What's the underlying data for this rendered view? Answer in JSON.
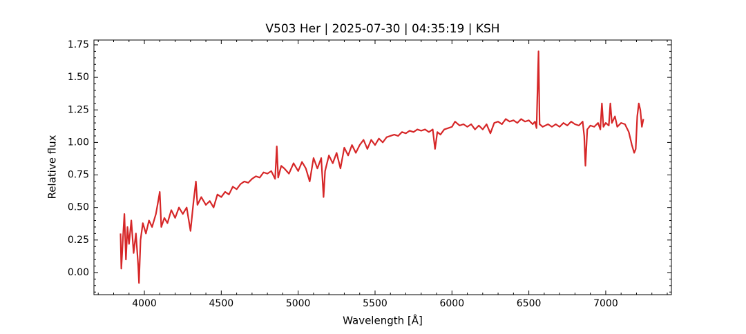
{
  "chart_data": {
    "type": "line",
    "title": "V503 Her | 2025-07-30 | 04:35:19 | KSH",
    "xlabel": "Wavelength [Å]",
    "ylabel": "Relative flux",
    "color": "#d62728",
    "xlim": [
      3672,
      7427
    ],
    "ylim": [
      -0.17,
      1.787
    ],
    "xticks": [
      4000,
      4500,
      5000,
      5500,
      6000,
      6500,
      7000
    ],
    "yticks": [
      {
        "value": 0,
        "label": "0.00"
      },
      {
        "value": 0.25,
        "label": "0.25"
      },
      {
        "value": 0.5,
        "label": "0.50"
      },
      {
        "value": 0.75,
        "label": "0.75"
      },
      {
        "value": 1,
        "label": "1.00"
      },
      {
        "value": 1.25,
        "label": "1.25"
      },
      {
        "value": 1.5,
        "label": "1.50"
      },
      {
        "value": 1.75,
        "label": "1.75"
      }
    ],
    "xminorticks": [
      3700,
      3800,
      3900,
      4100,
      4200,
      4300,
      4400,
      4600,
      4700,
      4800,
      4900,
      5100,
      5200,
      5300,
      5400,
      5600,
      5700,
      5800,
      5900,
      6100,
      6200,
      6300,
      6400,
      6600,
      6700,
      6800,
      6900,
      7100,
      7200,
      7300,
      7400
    ],
    "yminorticks": [
      -0.15,
      -0.1,
      -0.05,
      0.05,
      0.1,
      0.15,
      0.2,
      0.3,
      0.35,
      0.4,
      0.45,
      0.55,
      0.6,
      0.65,
      0.7,
      0.8,
      0.85,
      0.9,
      0.95,
      1.05,
      1.1,
      1.15,
      1.2,
      1.3,
      1.35,
      1.4,
      1.45,
      1.55,
      1.6,
      1.65,
      1.7
    ],
    "x": [
      3845,
      3850,
      3860,
      3870,
      3880,
      3890,
      3900,
      3915,
      3930,
      3945,
      3960,
      3965,
      3975,
      3990,
      4010,
      4030,
      4050,
      4075,
      4090,
      4100,
      4110,
      4130,
      4150,
      4175,
      4200,
      4225,
      4250,
      4275,
      4300,
      4320,
      4335,
      4345,
      4370,
      4400,
      4425,
      4450,
      4475,
      4500,
      4525,
      4550,
      4575,
      4600,
      4625,
      4650,
      4675,
      4700,
      4725,
      4750,
      4775,
      4800,
      4825,
      4850,
      4861,
      4870,
      4890,
      4910,
      4940,
      4970,
      5000,
      5025,
      5050,
      5075,
      5100,
      5125,
      5150,
      5165,
      5175,
      5200,
      5225,
      5250,
      5275,
      5300,
      5325,
      5350,
      5375,
      5400,
      5425,
      5450,
      5475,
      5500,
      5525,
      5550,
      5575,
      5600,
      5625,
      5650,
      5675,
      5700,
      5725,
      5750,
      5775,
      5800,
      5825,
      5850,
      5875,
      5890,
      5905,
      5925,
      5950,
      5975,
      6000,
      6020,
      6050,
      6075,
      6100,
      6125,
      6150,
      6175,
      6200,
      6225,
      6250,
      6275,
      6300,
      6325,
      6350,
      6375,
      6400,
      6425,
      6450,
      6475,
      6500,
      6525,
      6540,
      6550,
      6563,
      6570,
      6590,
      6625,
      6650,
      6675,
      6700,
      6725,
      6750,
      6775,
      6800,
      6825,
      6850,
      6860,
      6868,
      6880,
      6900,
      6925,
      6950,
      6965,
      6975,
      6985,
      7000,
      7020,
      7030,
      7040,
      7060,
      7075,
      7100,
      7125,
      7150,
      7170,
      7185,
      7195,
      7205,
      7215,
      7225,
      7235,
      7245
    ],
    "values": [
      0.3,
      0.03,
      0.25,
      0.45,
      0.1,
      0.35,
      0.22,
      0.4,
      0.15,
      0.3,
      0.05,
      -0.08,
      0.25,
      0.38,
      0.3,
      0.4,
      0.35,
      0.45,
      0.55,
      0.62,
      0.35,
      0.42,
      0.38,
      0.48,
      0.42,
      0.5,
      0.45,
      0.5,
      0.32,
      0.55,
      0.7,
      0.52,
      0.58,
      0.52,
      0.55,
      0.5,
      0.6,
      0.58,
      0.62,
      0.6,
      0.66,
      0.64,
      0.68,
      0.7,
      0.69,
      0.72,
      0.74,
      0.73,
      0.77,
      0.76,
      0.78,
      0.72,
      0.97,
      0.73,
      0.82,
      0.8,
      0.76,
      0.84,
      0.78,
      0.85,
      0.8,
      0.7,
      0.88,
      0.8,
      0.88,
      0.58,
      0.78,
      0.9,
      0.84,
      0.92,
      0.8,
      0.96,
      0.9,
      0.98,
      0.92,
      0.98,
      1.02,
      0.95,
      1.02,
      0.98,
      1.03,
      1.0,
      1.04,
      1.05,
      1.06,
      1.05,
      1.08,
      1.07,
      1.09,
      1.08,
      1.1,
      1.09,
      1.1,
      1.08,
      1.1,
      0.95,
      1.08,
      1.06,
      1.1,
      1.11,
      1.12,
      1.16,
      1.13,
      1.14,
      1.12,
      1.14,
      1.1,
      1.13,
      1.1,
      1.14,
      1.07,
      1.15,
      1.16,
      1.14,
      1.18,
      1.16,
      1.17,
      1.15,
      1.18,
      1.16,
      1.17,
      1.14,
      1.16,
      1.11,
      1.7,
      1.14,
      1.12,
      1.14,
      1.12,
      1.14,
      1.12,
      1.15,
      1.13,
      1.16,
      1.14,
      1.13,
      1.16,
      1.05,
      0.82,
      1.1,
      1.13,
      1.12,
      1.15,
      1.1,
      1.3,
      1.12,
      1.15,
      1.13,
      1.3,
      1.15,
      1.2,
      1.12,
      1.15,
      1.14,
      1.08,
      0.98,
      0.92,
      0.95,
      1.2,
      1.3,
      1.25,
      1.12,
      1.18
    ]
  }
}
